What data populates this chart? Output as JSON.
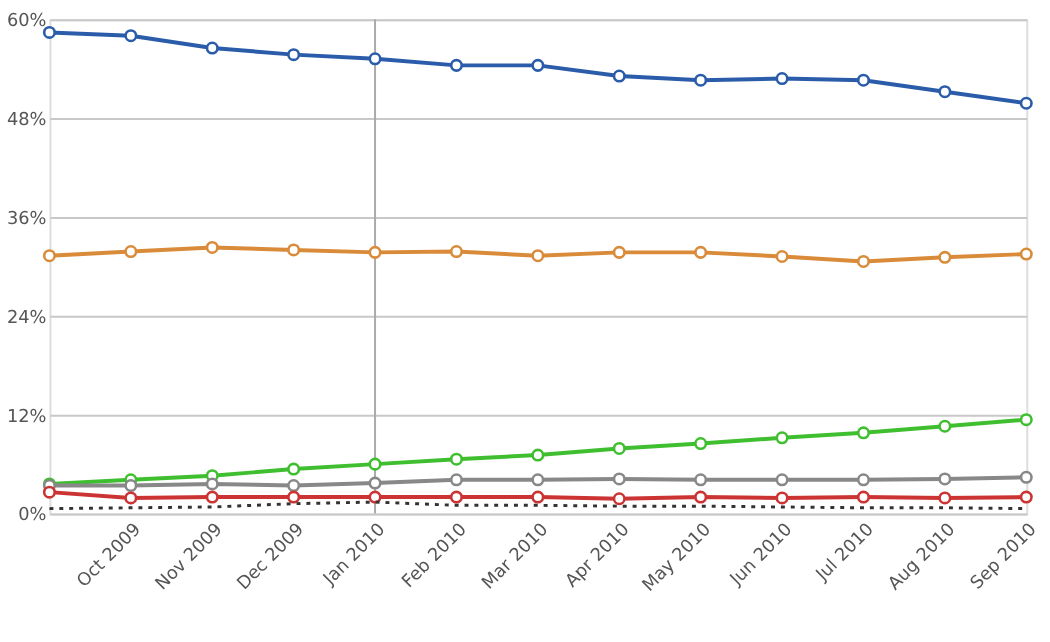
{
  "chart_data": {
    "type": "line",
    "categories": [
      null,
      "Oct 2009",
      "Nov 2009",
      "Dec 2009",
      "Jan 2010",
      "Feb 2010",
      "Mar 2010",
      "Apr 2010",
      "May 2010",
      "Jun 2010",
      "Jul 2010",
      "Aug 2010",
      "Sep 2010"
    ],
    "series": [
      {
        "color": "#2a5caa",
        "values": [
          58.4,
          58.0,
          56.5,
          55.7,
          55.2,
          54.4,
          54.4,
          53.1,
          52.6,
          52.8,
          52.6,
          51.2,
          49.8
        ]
      },
      {
        "color": "#d98b3a",
        "values": [
          31.3,
          31.8,
          32.3,
          32.0,
          31.7,
          31.8,
          31.3,
          31.7,
          31.7,
          31.2,
          30.6,
          31.1,
          31.5
        ]
      },
      {
        "color": "#3fbf2f",
        "values": [
          3.6,
          4.1,
          4.6,
          5.4,
          6.0,
          6.6,
          7.1,
          7.9,
          8.5,
          9.2,
          9.8,
          10.6,
          11.4
        ]
      },
      {
        "color": "#888888",
        "values": [
          3.4,
          3.4,
          3.6,
          3.4,
          3.7,
          4.1,
          4.1,
          4.2,
          4.1,
          4.1,
          4.1,
          4.2,
          4.4
        ]
      },
      {
        "color": "#cc3333",
        "values": [
          2.6,
          1.9,
          2.0,
          2.0,
          2.0,
          2.0,
          2.0,
          1.8,
          2.0,
          1.9,
          2.0,
          1.9,
          2.0
        ]
      },
      {
        "color": "#333333",
        "values": [
          0.6,
          0.7,
          0.8,
          1.2,
          1.4,
          1.0,
          1.0,
          0.9,
          0.9,
          0.8,
          0.7,
          0.7,
          0.6
        ],
        "line_style": "dotted",
        "marker": "none"
      }
    ],
    "ylim": [
      0,
      60
    ],
    "yticks": [
      {
        "value": 0,
        "label": "0%"
      },
      {
        "value": 12,
        "label": "12%"
      },
      {
        "value": 24,
        "label": "24%"
      },
      {
        "value": 36,
        "label": "36%"
      },
      {
        "value": 48,
        "label": "48%"
      },
      {
        "value": 60,
        "label": "60%"
      }
    ],
    "ref_lines": [
      {
        "axis": "x",
        "value": "Jan 2010",
        "color": "#aaaaaa"
      }
    ],
    "grid": "y",
    "marker": "circle",
    "line_style": "solid"
  }
}
